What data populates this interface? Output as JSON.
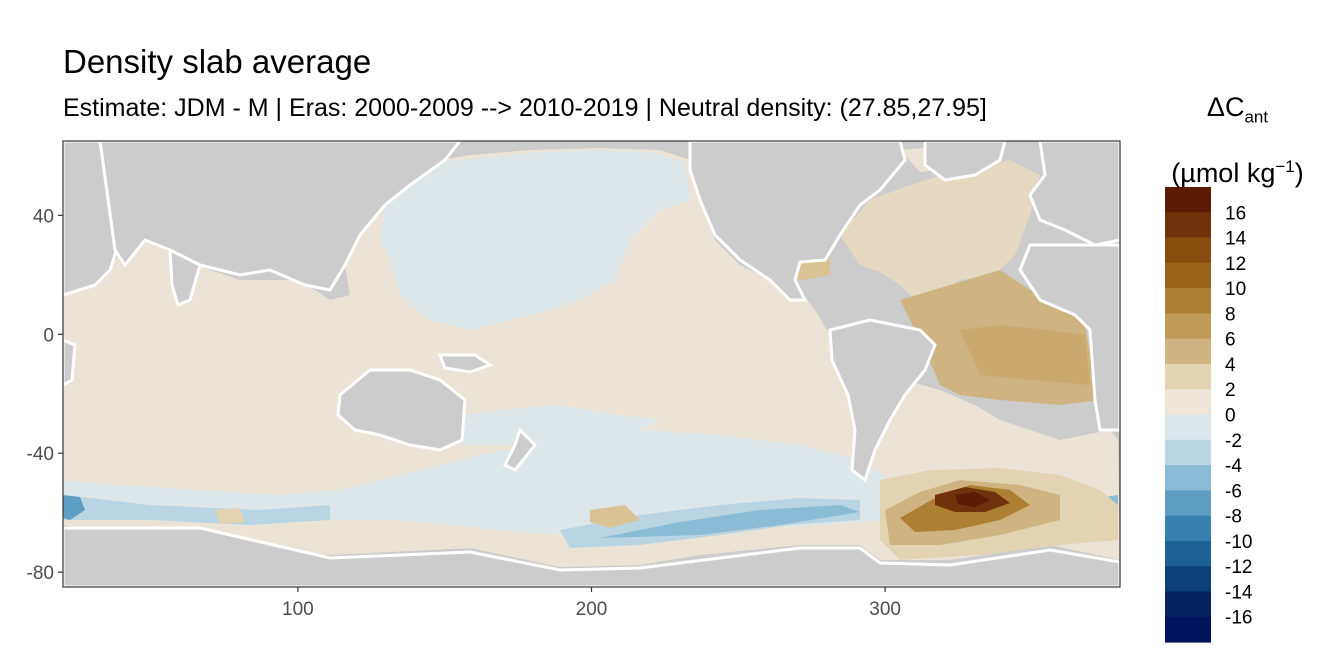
{
  "title": "Density slab average",
  "subtitle": "Estimate: JDM - M | Eras: 2000-2009 --> 2010-2019 | Neutral density: (27.85,27.95]",
  "colors": {
    "land": "#cccccc",
    "panel_border": "#333333",
    "coast": "#ffffff"
  },
  "map": {
    "xlim": [
      20,
      380
    ],
    "ylim": [
      -85,
      65
    ],
    "x_ticks": [
      100,
      200,
      300
    ],
    "y_ticks": [
      40,
      0,
      -40,
      -80
    ],
    "x_tick_labels": [
      "100",
      "200",
      "300"
    ],
    "y_tick_labels": [
      "40",
      "0",
      "-40",
      "-80"
    ]
  },
  "legend": {
    "title_symbol": "ΔC",
    "title_subscript": "ant",
    "unit_open": "(µmol kg",
    "unit_superscript": "−1",
    "unit_close": ")",
    "labels": [
      "16",
      "14",
      "12",
      "10",
      "8",
      "6",
      "4",
      "2",
      "0",
      "-2",
      "-4",
      "-6",
      "-8",
      "-10",
      "-12",
      "-14",
      "-16"
    ],
    "colors": [
      "#5c1b05",
      "#70320a",
      "#864d0e",
      "#9a6418",
      "#ad7f32",
      "#bf9a58",
      "#cfb482",
      "#e2d3b2",
      "#ede6d9",
      "#dce7ec",
      "#b9d5e3",
      "#8cbcd5",
      "#5f9ec4",
      "#3880b0",
      "#1d6196",
      "#0b4079",
      "#04235f",
      "#00125a"
    ]
  }
}
